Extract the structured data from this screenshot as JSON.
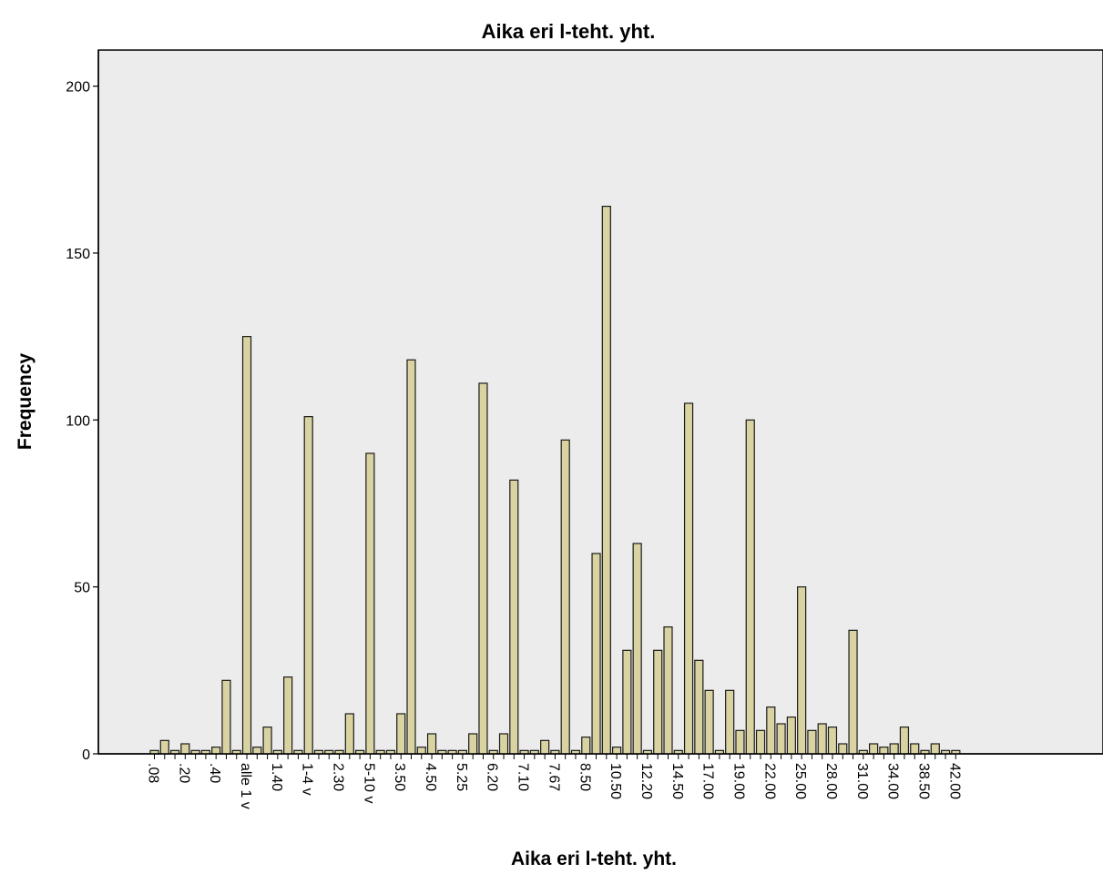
{
  "chart_data": {
    "type": "bar",
    "title": "Aika eri l-teht. yht.",
    "xlabel": "Aika eri l-teht. yht.",
    "ylabel": "Frequency",
    "ylim": [
      0,
      210
    ],
    "yticks": [
      0,
      50,
      100,
      150,
      200
    ],
    "grid": false,
    "legend": "none",
    "colors": {
      "plot_background": "#ececec",
      "bar_fill": "#d9d3a2",
      "bar_stroke": "#1a1a1a"
    },
    "x_tick_labels": [
      ".08",
      ".20",
      ".40",
      "alle 1 v",
      "1.40",
      "1-4 v",
      "2.30",
      "5-10 v",
      "3.50",
      "4.50",
      "5.25",
      "6.20",
      "7.10",
      "7.67",
      "8.50",
      "10.50",
      "12.20",
      "14.50",
      "17.00",
      "19.00",
      "22.00",
      "25.00",
      "28.00",
      "31.00",
      "34.00",
      "38.50",
      "42.00"
    ],
    "values": [
      1,
      4,
      1,
      3,
      1,
      1,
      2,
      22,
      1,
      125,
      2,
      8,
      1,
      23,
      1,
      101,
      1,
      1,
      1,
      12,
      1,
      90,
      1,
      1,
      12,
      118,
      2,
      6,
      1,
      1,
      1,
      6,
      111,
      1,
      6,
      82,
      1,
      1,
      4,
      1,
      94,
      1,
      5,
      60,
      164,
      2,
      31,
      63,
      1,
      31,
      38,
      1,
      105,
      28,
      19,
      1,
      19,
      7,
      100,
      7,
      14,
      9,
      11,
      50,
      7,
      9,
      8,
      3,
      37,
      1,
      3,
      2,
      3,
      8,
      3,
      1,
      3,
      1,
      1
    ]
  }
}
